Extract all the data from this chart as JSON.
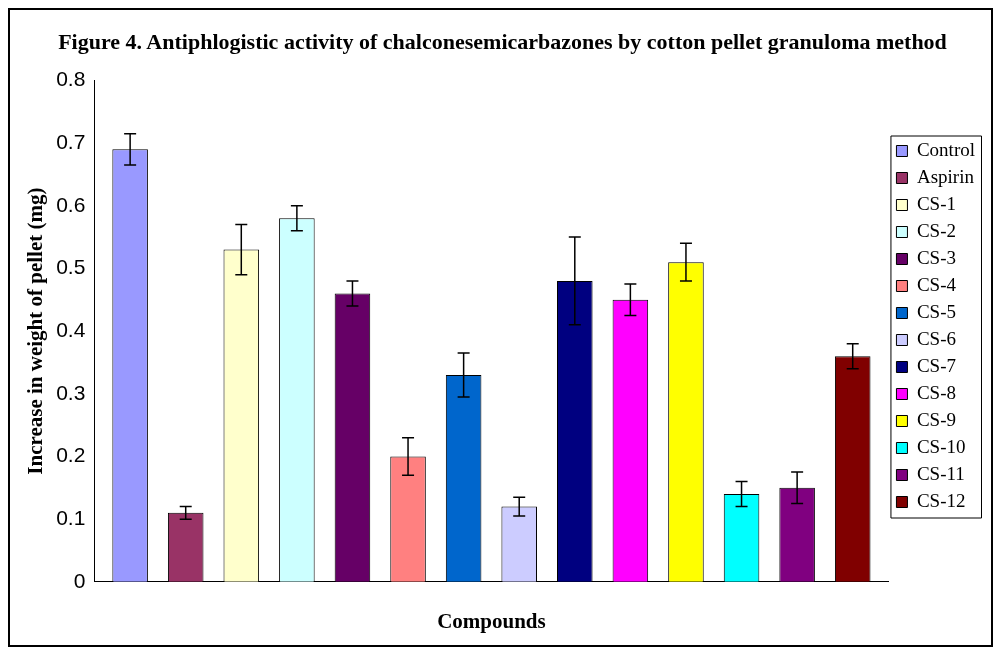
{
  "chart_data": {
    "type": "bar",
    "title": "Figure 4. Antiphlogistic activity of chalconesemicarbazones by cotton pellet granuloma method",
    "xlabel": "Compounds",
    "ylabel": "Increase in weight of pellet (mg)",
    "categories": [
      null
    ],
    "ylim": [
      0,
      0.8
    ],
    "yticks": [
      0,
      0.1,
      0.2,
      0.3,
      0.4,
      0.5,
      0.6,
      0.7,
      0.8
    ],
    "grid": false,
    "legend": "right",
    "series": [
      {
        "name": "Control",
        "color": "#9999ff",
        "values": [
          0.69
        ],
        "errors": [
          0.025
        ]
      },
      {
        "name": "Aspirin",
        "color": "#993366",
        "values": [
          0.11
        ],
        "errors": [
          0.01
        ]
      },
      {
        "name": "CS-1",
        "color": "#ffffcc",
        "values": [
          0.53
        ],
        "errors": [
          0.04
        ]
      },
      {
        "name": "CS-2",
        "color": "#ccffff",
        "values": [
          0.58
        ],
        "errors": [
          0.02
        ]
      },
      {
        "name": "CS-3",
        "color": "#660066",
        "values": [
          0.46
        ],
        "errors": [
          0.02
        ]
      },
      {
        "name": "CS-4",
        "color": "#ff8080",
        "values": [
          0.2
        ],
        "errors": [
          0.03
        ]
      },
      {
        "name": "CS-5",
        "color": "#0066cc",
        "values": [
          0.33
        ],
        "errors": [
          0.035
        ]
      },
      {
        "name": "CS-6",
        "color": "#ccccff",
        "values": [
          0.12
        ],
        "errors": [
          0.015
        ]
      },
      {
        "name": "CS-7",
        "color": "#000080",
        "values": [
          0.48
        ],
        "errors": [
          0.07
        ]
      },
      {
        "name": "CS-8",
        "color": "#ff00ff",
        "values": [
          0.45
        ],
        "errors": [
          0.025
        ]
      },
      {
        "name": "CS-9",
        "color": "#ffff00",
        "values": [
          0.51
        ],
        "errors": [
          0.03
        ]
      },
      {
        "name": "CS-10",
        "color": "#00ffff",
        "values": [
          0.14
        ],
        "errors": [
          0.02
        ]
      },
      {
        "name": "CS-11",
        "color": "#800080",
        "values": [
          0.15
        ],
        "errors": [
          0.025
        ]
      },
      {
        "name": "CS-12",
        "color": "#800000",
        "values": [
          0.36
        ],
        "errors": [
          0.02
        ]
      }
    ]
  }
}
